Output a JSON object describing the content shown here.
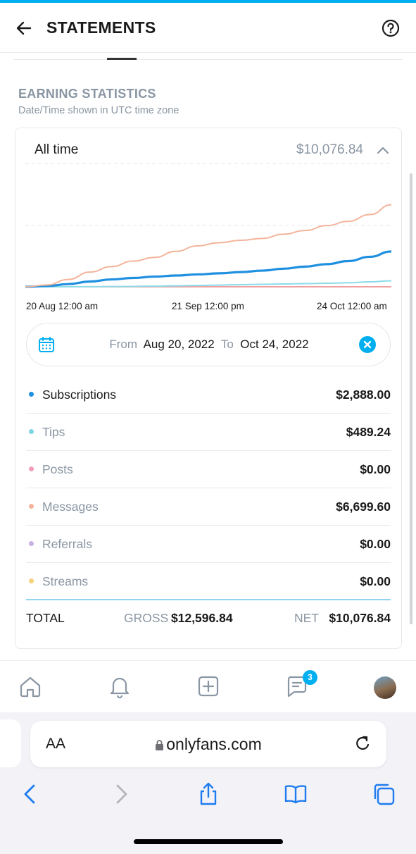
{
  "header": {
    "title": "STATEMENTS"
  },
  "section": {
    "title": "EARNING STATISTICS",
    "subtitle": "Date/Time shown in UTC time zone"
  },
  "card": {
    "period_label": "All time",
    "period_total": "$10,076.84"
  },
  "chart_data": {
    "type": "line",
    "x_ticks": [
      "20 Aug 12:00 am",
      "21 Sep 12:00 pm",
      "24 Oct 12:00 am"
    ],
    "x_range": [
      "2022-08-20",
      "2022-10-24"
    ],
    "grid": "horizontal dashed",
    "series": [
      {
        "name": "Messages",
        "color": "#f3b49b",
        "values": [
          0,
          150,
          600,
          1200,
          1650,
          2100,
          2400,
          2900,
          3350,
          3600,
          3800,
          3950,
          4300,
          4600,
          5000,
          5350,
          5900,
          6699.6
        ]
      },
      {
        "name": "Subscriptions",
        "color": "#1f8fdf",
        "values": [
          0,
          60,
          220,
          430,
          600,
          720,
          830,
          920,
          1010,
          1100,
          1200,
          1320,
          1480,
          1650,
          1850,
          2100,
          2450,
          2888
        ]
      },
      {
        "name": "Tips",
        "color": "#8ddbe8",
        "values": [
          0,
          0,
          0,
          10,
          20,
          30,
          50,
          80,
          110,
          140,
          170,
          200,
          230,
          260,
          290,
          330,
          400,
          489.24
        ]
      },
      {
        "name": "Posts",
        "color": "#f0a0a0",
        "values": [
          0,
          0,
          0,
          0,
          0,
          0,
          0,
          0,
          0,
          0,
          0,
          0,
          0,
          0,
          0,
          0,
          0,
          0
        ]
      }
    ],
    "ylim": [
      0,
      10076.84
    ]
  },
  "date_range": {
    "from_label": "From",
    "from_value": "Aug 20, 2022",
    "to_label": "To",
    "to_value": "Oct 24, 2022"
  },
  "rows": [
    {
      "label": "Subscriptions",
      "amount": "$2,888.00",
      "dot_color": "#1f8fdf"
    },
    {
      "label": "Tips",
      "amount": "$489.24",
      "dot_color": "#7dd6e6"
    },
    {
      "label": "Posts",
      "amount": "$0.00",
      "dot_color": "#f29db6"
    },
    {
      "label": "Messages",
      "amount": "$6,699.60",
      "dot_color": "#f3b49b"
    },
    {
      "label": "Referrals",
      "amount": "$0.00",
      "dot_color": "#c9b1e2"
    },
    {
      "label": "Streams",
      "amount": "$0.00",
      "dot_color": "#f7d07a"
    }
  ],
  "total": {
    "label": "TOTAL",
    "gross_label": "GROSS",
    "gross_value": "$12,596.84",
    "net_label": "NET",
    "net_value": "$10,076.84"
  },
  "bottom_nav": {
    "chat_badge": "3"
  },
  "browser": {
    "aa_label": "AA",
    "url": "onlyfans.com"
  },
  "colors": {
    "accent": "#00aff0",
    "muted": "#8a96a3"
  }
}
